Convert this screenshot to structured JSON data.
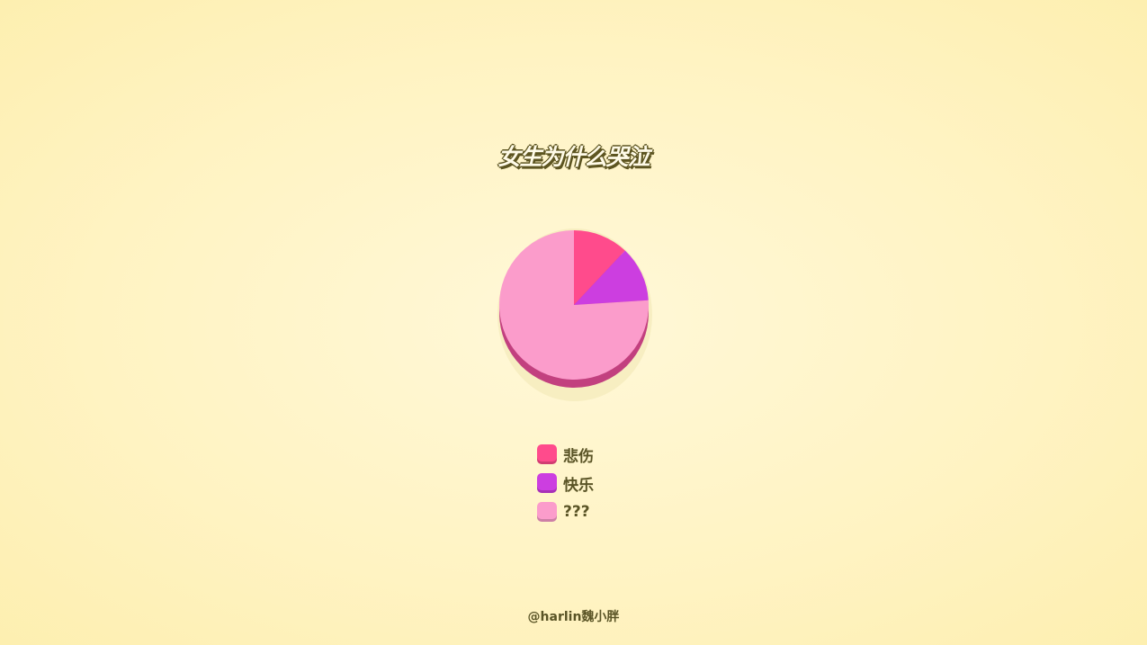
{
  "chart_data": {
    "type": "pie",
    "title": "女生为什么哭泣",
    "categories": [
      "悲伤",
      "快乐",
      "???"
    ],
    "values": [
      12,
      12,
      76
    ],
    "colors": [
      "#ff4b8c",
      "#cc3ee0",
      "#fb9ccb"
    ],
    "legend": "bottom"
  },
  "credit": "@harlin魏小胖"
}
